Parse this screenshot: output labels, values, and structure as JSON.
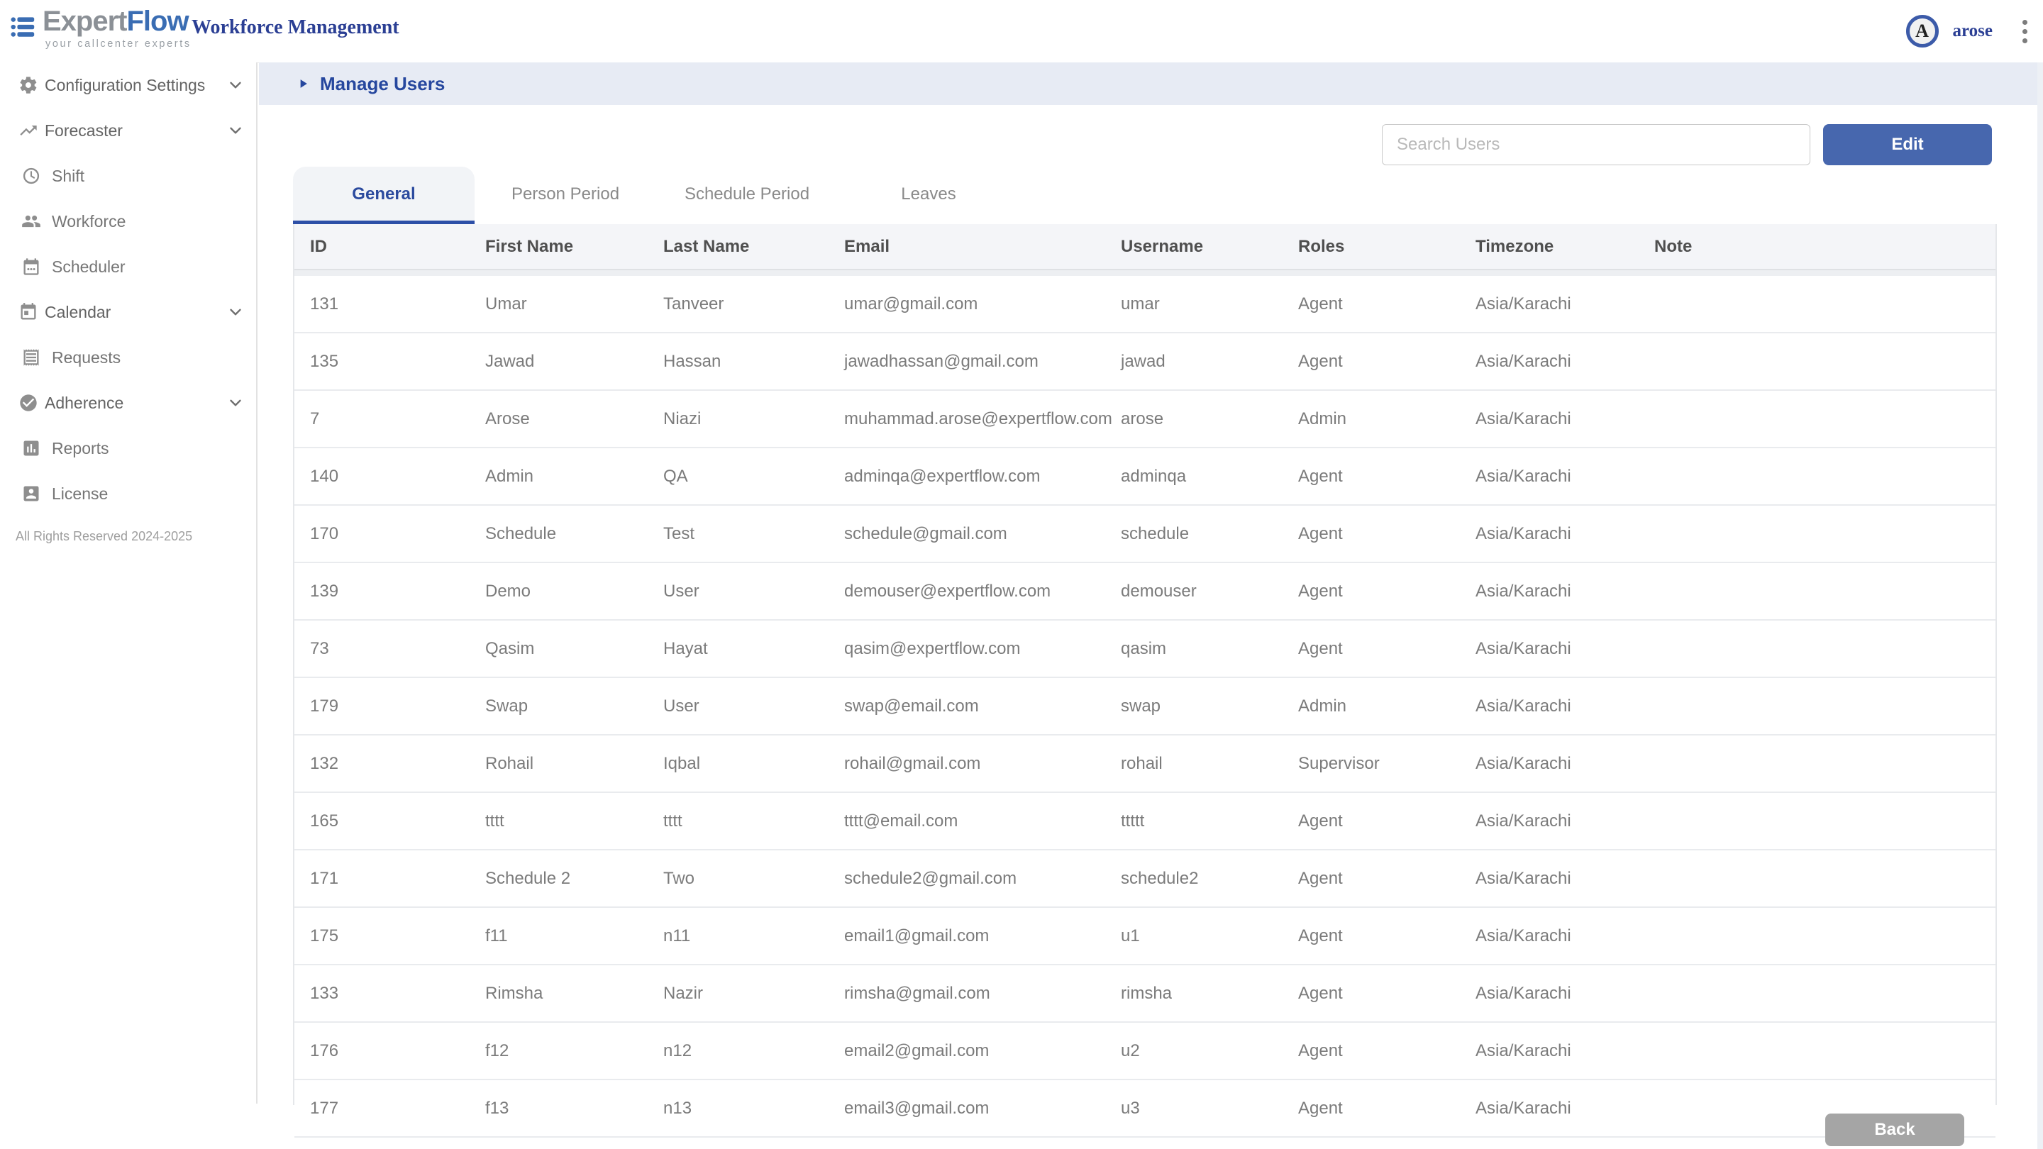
{
  "header": {
    "logo": {
      "icon": "expertflow-logo-icon",
      "brand_expert": "Expert",
      "brand_flow": "Flow",
      "tagline": "your callcenter experts"
    },
    "app_title": "Workforce Management",
    "user": {
      "initial": "A",
      "name": "arose"
    },
    "menu_icon": "kebab-menu-icon"
  },
  "sidebar": {
    "items": [
      {
        "label": "Configuration Settings",
        "icon": "gear-icon",
        "expandable": true,
        "child": false
      },
      {
        "label": "Forecaster",
        "icon": "trending-up-icon",
        "expandable": true,
        "child": false
      },
      {
        "label": "Shift",
        "icon": "clock-icon",
        "expandable": false,
        "child": true
      },
      {
        "label": "Workforce",
        "icon": "people-icon",
        "expandable": false,
        "child": true
      },
      {
        "label": "Scheduler",
        "icon": "calendar-dots-icon",
        "expandable": false,
        "child": true
      },
      {
        "label": "Calendar",
        "icon": "calendar-icon",
        "expandable": true,
        "child": false
      },
      {
        "label": "Requests",
        "icon": "receipt-icon",
        "expandable": false,
        "child": true
      },
      {
        "label": "Adherence",
        "icon": "check-circle-icon",
        "expandable": true,
        "child": false
      },
      {
        "label": "Reports",
        "icon": "bar-chart-icon",
        "expandable": false,
        "child": true
      },
      {
        "label": "License",
        "icon": "badge-icon",
        "expandable": false,
        "child": true
      }
    ],
    "footer": "All Rights Reserved 2024-2025"
  },
  "main": {
    "breadcrumb": "Manage Users",
    "search": {
      "placeholder": "Search Users"
    },
    "edit_button": "Edit",
    "back_button": "Back",
    "tabs": [
      {
        "label": "General",
        "active": true
      },
      {
        "label": "Person Period",
        "active": false
      },
      {
        "label": "Schedule Period",
        "active": false
      },
      {
        "label": "Leaves",
        "active": false
      }
    ],
    "table": {
      "columns": [
        "ID",
        "First Name",
        "Last Name",
        "Email",
        "Username",
        "Roles",
        "Timezone",
        "Note"
      ],
      "rows": [
        [
          "131",
          "Umar",
          "Tanveer",
          "umar@gmail.com",
          "umar",
          "Agent",
          "Asia/Karachi",
          ""
        ],
        [
          "135",
          "Jawad",
          "Hassan",
          "jawadhassan@gmail.com",
          "jawad",
          "Agent",
          "Asia/Karachi",
          ""
        ],
        [
          "7",
          "Arose",
          "Niazi",
          "muhammad.arose@expertflow.com",
          "arose",
          "Admin",
          "Asia/Karachi",
          ""
        ],
        [
          "140",
          "Admin",
          "QA",
          "adminqa@expertflow.com",
          "adminqa",
          "Agent",
          "Asia/Karachi",
          ""
        ],
        [
          "170",
          "Schedule",
          "Test",
          "schedule@gmail.com",
          "schedule",
          "Agent",
          "Asia/Karachi",
          ""
        ],
        [
          "139",
          "Demo",
          "User",
          "demouser@expertflow.com",
          "demouser",
          "Agent",
          "Asia/Karachi",
          ""
        ],
        [
          "73",
          "Qasim",
          "Hayat",
          "qasim@expertflow.com",
          "qasim",
          "Agent",
          "Asia/Karachi",
          ""
        ],
        [
          "179",
          "Swap",
          "User",
          "swap@email.com",
          "swap",
          "Admin",
          "Asia/Karachi",
          ""
        ],
        [
          "132",
          "Rohail",
          "Iqbal",
          "rohail@gmail.com",
          "rohail",
          "Supervisor",
          "Asia/Karachi",
          ""
        ],
        [
          "165",
          "tttt",
          "tttt",
          "tttt@email.com",
          "ttttt",
          "Agent",
          "Asia/Karachi",
          ""
        ],
        [
          "171",
          "Schedule 2",
          "Two",
          "schedule2@gmail.com",
          "schedule2",
          "Agent",
          "Asia/Karachi",
          ""
        ],
        [
          "175",
          "f11",
          "n11",
          "email1@gmail.com",
          "u1",
          "Agent",
          "Asia/Karachi",
          ""
        ],
        [
          "133",
          "Rimsha",
          "Nazir",
          "rimsha@gmail.com",
          "rimsha",
          "Agent",
          "Asia/Karachi",
          ""
        ],
        [
          "176",
          "f12",
          "n12",
          "email2@gmail.com",
          "u2",
          "Agent",
          "Asia/Karachi",
          ""
        ],
        [
          "177",
          "f13",
          "n13",
          "email3@gmail.com",
          "u3",
          "Agent",
          "Asia/Karachi",
          ""
        ]
      ]
    }
  },
  "colors": {
    "accent": "#26479e",
    "edit_button": "#4767ae",
    "back_button": "#a5a5a5",
    "manage_bar_bg": "#e7ebf4",
    "active_tab_underline": "#2d4fa7"
  }
}
